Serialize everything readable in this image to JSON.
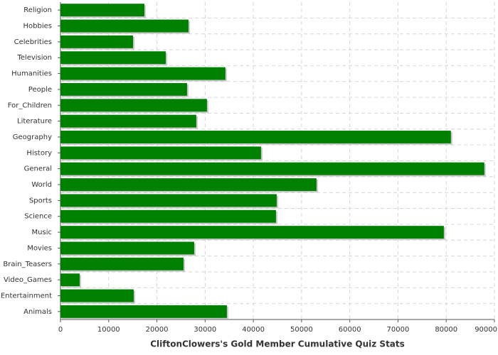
{
  "chart_data": {
    "type": "barh",
    "title": "CliftonClowers's Gold Member Cumulative Quiz Stats",
    "categories": [
      "Religion",
      "Hobbies",
      "Celebrities",
      "Television",
      "Humanities",
      "People",
      "For_Children",
      "Literature",
      "Geography",
      "History",
      "General",
      "World",
      "Sports",
      "Science",
      "Music",
      "Movies",
      "Brain_Teasers",
      "Video_Games",
      "Entertainment",
      "Animals"
    ],
    "values": [
      17400,
      26550,
      15050,
      21830,
      34200,
      26250,
      30380,
      28170,
      80970,
      41590,
      87900,
      53100,
      44840,
      44690,
      79500,
      27730,
      25520,
      3980,
      15190,
      34510
    ],
    "color": "#008000",
    "xlim": [
      0,
      90000
    ],
    "xticks": [
      0,
      10000,
      20000,
      30000,
      40000,
      50000,
      60000,
      70000,
      80000,
      90000
    ],
    "grid": true
  }
}
